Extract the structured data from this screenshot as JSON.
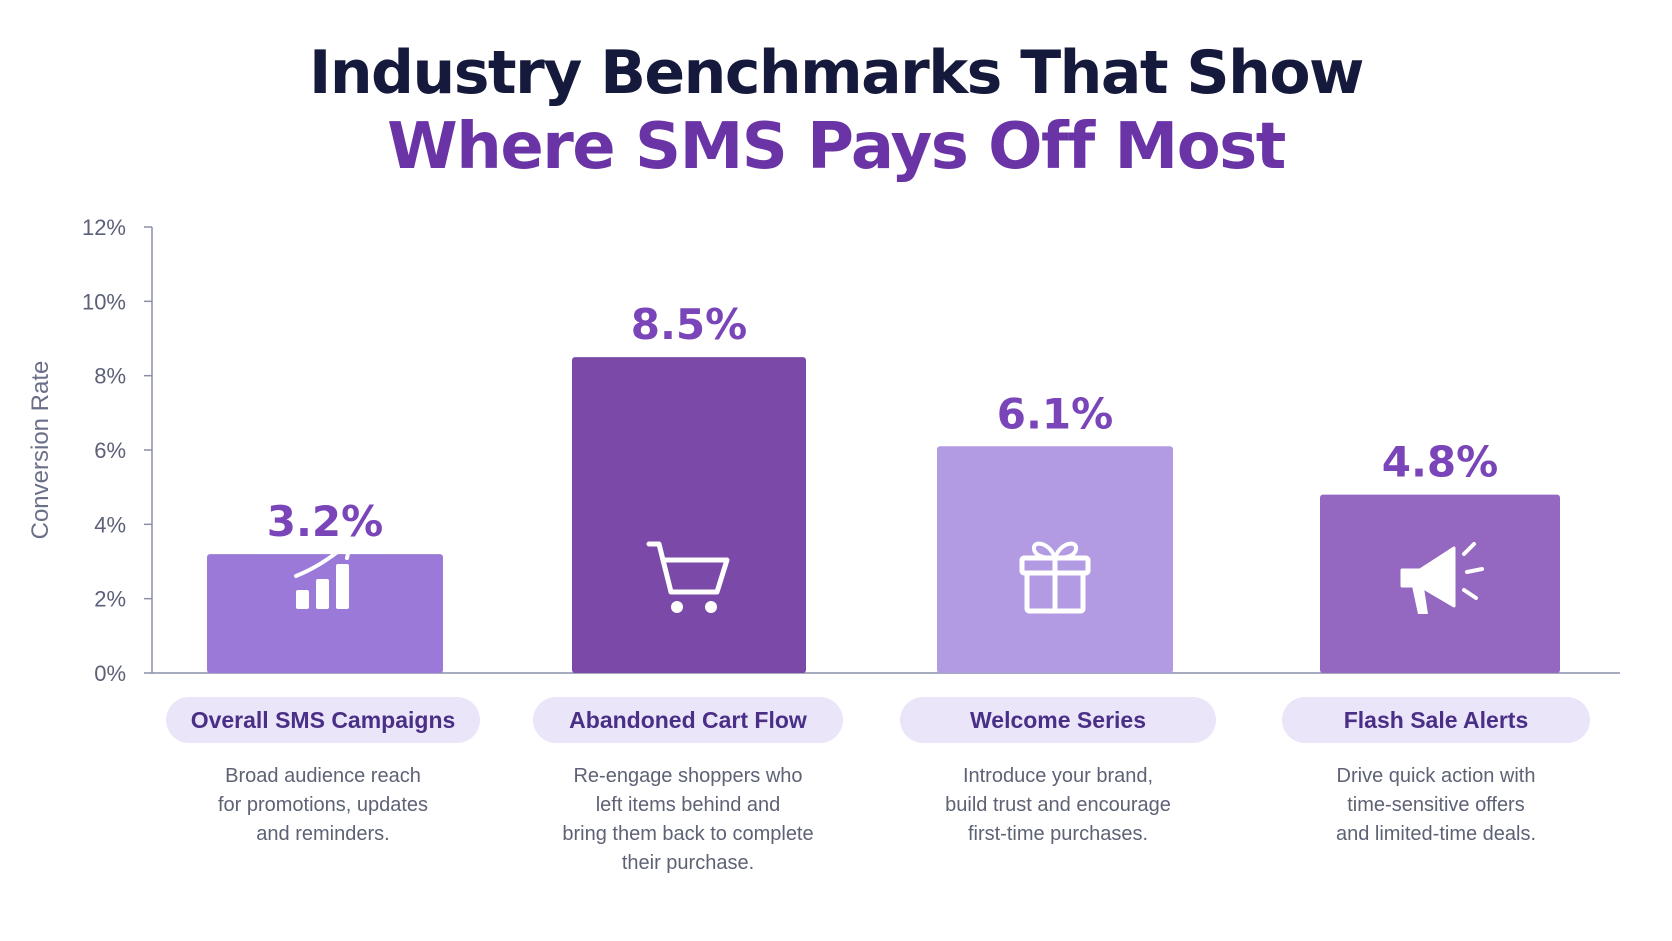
{
  "title_line1": "Industry Benchmarks That Show",
  "title_line2": "Where SMS Pays Off Most",
  "chart_data": {
    "type": "bar",
    "ylabel": "Conversion Rate",
    "ylim": [
      0,
      12
    ],
    "yticks": [
      "0%",
      "2%",
      "4%",
      "6%",
      "8%",
      "10%",
      "12%"
    ],
    "grid": false,
    "categories": [
      "Overall SMS Campaigns",
      "Abandoned Cart Flow",
      "Welcome Series",
      "Flash Sale Alerts"
    ],
    "values": [
      3.2,
      8.5,
      6.1,
      4.8
    ],
    "value_labels": [
      "3.2%",
      "8.5%",
      "6.1%",
      "4.8%"
    ],
    "bar_colors": [
      "#9a79d8",
      "#7b4aa8",
      "#b39be4",
      "#9467c0"
    ],
    "bar_icons": [
      "growth-chart-icon",
      "shopping-cart-icon",
      "gift-icon",
      "megaphone-icon"
    ],
    "descriptions": [
      [
        "Broad audience reach",
        "for promotions, updates",
        "and reminders."
      ],
      [
        "Re-engage shoppers who",
        "left items behind and",
        "bring them back to complete",
        "their purchase."
      ],
      [
        "Introduce your brand,",
        "build trust and encourage",
        "first-time purchases."
      ],
      [
        "Drive quick action with",
        "time-sensitive offers",
        "and limited-time deals."
      ]
    ]
  },
  "colors": {
    "title_dark": "#15193b",
    "title_accent": "#6b34a6",
    "value_label": "#7a45b8",
    "axis": "#8a8fa8",
    "tick_text": "#5c6178",
    "pill_bg": "#ebe5fa",
    "pill_text": "#4a2f86"
  }
}
